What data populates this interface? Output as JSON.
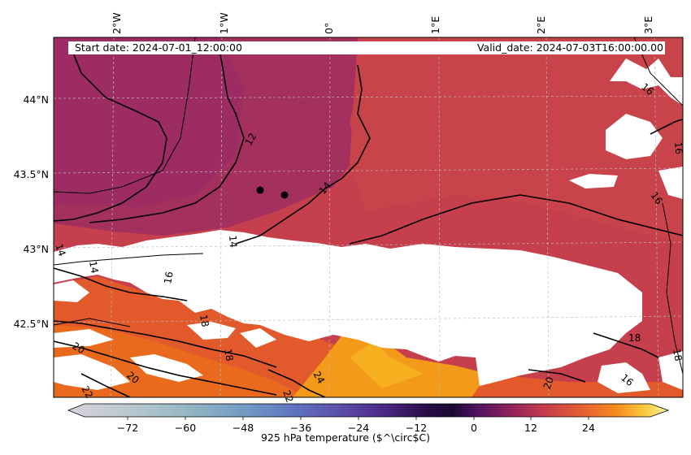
{
  "map": {
    "header_left": "Start date: 2024-07-01_12:00:00",
    "header_right": "Valid_date: 2024-07-03T16:00:00.00",
    "lon_labels": [
      "2°W",
      "1°W",
      "0°",
      "1°E",
      "2°E",
      "3°E"
    ],
    "lat_labels": [
      "44°N",
      "43.5°N",
      "43°N",
      "42.5°N"
    ],
    "contour_labels": [
      "16",
      "16",
      "16",
      "18",
      "18",
      "20",
      "20",
      "20",
      "22",
      "22",
      "14",
      "14",
      "14",
      "12",
      "24",
      "16",
      "18",
      "18",
      "14",
      "16"
    ],
    "field": "925 hPa temperature",
    "colormap": "inferno-like diverging",
    "missing_data_color": "#ffffff"
  },
  "colorbar": {
    "label": "925 hPa temperature ($^\\circ$C)",
    "ticks": [
      "−72",
      "−60",
      "−48",
      "−36",
      "−24",
      "−12",
      "0",
      "12",
      "24"
    ],
    "range": [
      -84,
      33
    ],
    "extend": "both"
  },
  "colors": {
    "north_plum": "#a0305f",
    "center_red": "#c53f4d",
    "south_orange": "#e8601c",
    "hot_orange": "#f39a1a"
  }
}
